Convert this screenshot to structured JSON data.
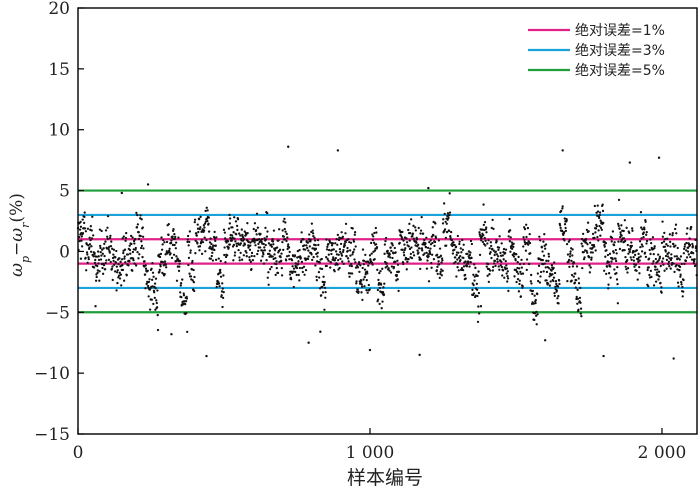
{
  "chart_data": {
    "type": "scatter",
    "title": "",
    "xlabel": "样本编号",
    "ylabel": "ω_p−ω_r(%)",
    "ylabel_parts": {
      "w1": "ω",
      "sub1": "p",
      "minus": "−",
      "w2": "ω",
      "sub2": "r",
      "unit": "(%)"
    },
    "xlim": [
      0,
      2120
    ],
    "ylim": [
      -15,
      20
    ],
    "x_ticks": [
      0,
      1000,
      2000
    ],
    "x_tick_labels": [
      "0",
      "1 000",
      "2 000"
    ],
    "y_ticks": [
      -15,
      -10,
      -5,
      0,
      5,
      10,
      15,
      20
    ],
    "y_tick_labels": [
      "−15",
      "−10",
      "−5",
      "0",
      "5",
      "10",
      "15",
      "20"
    ],
    "grid": false,
    "legend_position": "top-right",
    "legend": [
      {
        "label": "绝对误差=1%",
        "color": "#e0218a"
      },
      {
        "label": "绝对误差=3%",
        "color": "#1aa3d9"
      },
      {
        "label": "绝对误差=5%",
        "color": "#1f9e3a"
      }
    ],
    "reference_lines": [
      {
        "name": "绝对误差=1%",
        "values": [
          1,
          -1
        ],
        "color": "#e0218a"
      },
      {
        "name": "绝对误差=3%",
        "values": [
          3,
          -3
        ],
        "color": "#1aa3d9"
      },
      {
        "name": "绝对误差=5%",
        "values": [
          5,
          -5
        ],
        "color": "#1f9e3a"
      }
    ],
    "series": [
      {
        "marker_color": "#111111",
        "num_points": 2120,
        "value_range": [
          -8.8,
          8.7
        ],
        "points_sample": [
          [
            10,
            -0.6
          ],
          [
            60,
            -4.5
          ],
          [
            150,
            4.8
          ],
          [
            240,
            5.5
          ],
          [
            320,
            -6.8
          ],
          [
            440,
            -8.6
          ],
          [
            520,
            2.3
          ],
          [
            720,
            8.6
          ],
          [
            790,
            -7.5
          ],
          [
            830,
            -6.6
          ],
          [
            890,
            8.3
          ],
          [
            1000,
            -8.1
          ],
          [
            1170,
            -8.5
          ],
          [
            1200,
            5.2
          ],
          [
            1380,
            -4.5
          ],
          [
            1600,
            -7.3
          ],
          [
            1660,
            8.3
          ],
          [
            1800,
            -8.6
          ],
          [
            1890,
            7.3
          ],
          [
            1990,
            7.7
          ],
          [
            2040,
            -8.8
          ],
          [
            2100,
            2.0
          ]
        ]
      }
    ]
  }
}
